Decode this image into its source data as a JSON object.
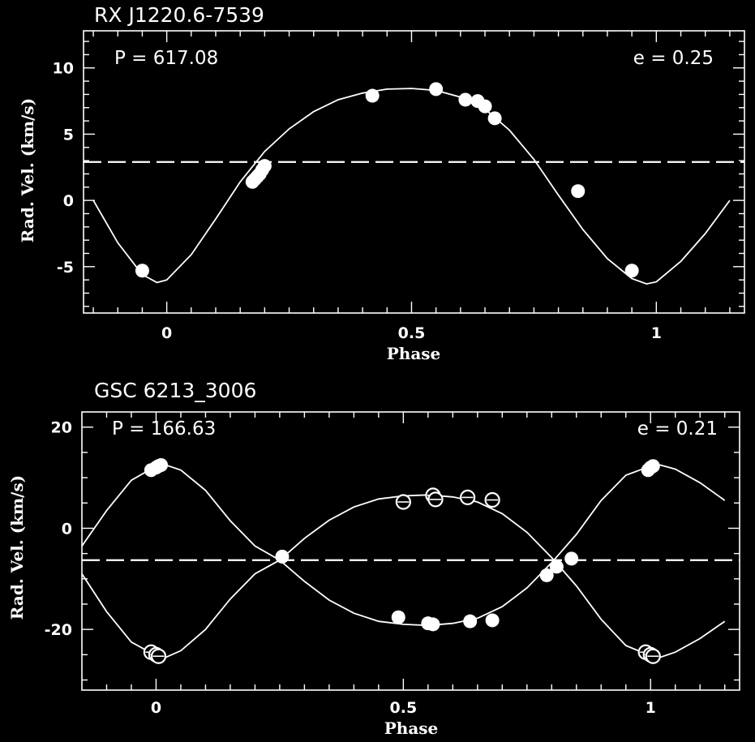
{
  "chart_data": [
    {
      "type": "scatter",
      "title": "RX J1220.6-7539",
      "annotations": {
        "period": "P = 617.08",
        "eccentricity": "e = 0.25"
      },
      "xlabel": "Phase",
      "ylabel": "Rad. Vel. (km/s)",
      "xlim": [
        -0.17,
        1.18
      ],
      "ylim": [
        -8.5,
        12.8
      ],
      "x_ticks": [
        0,
        0.5,
        1
      ],
      "x_tick_labels": [
        "0",
        "0.5",
        "1"
      ],
      "y_ticks": [
        -5,
        0,
        5,
        10
      ],
      "y_tick_labels": [
        "-5",
        "0",
        "5",
        "10"
      ],
      "reference_line": 2.9,
      "series": [
        {
          "marker": "filled",
          "x": [
            -0.05,
            0.175,
            0.18,
            0.185,
            0.19,
            0.195,
            0.2,
            0.42,
            0.55,
            0.61,
            0.635,
            0.65,
            0.67,
            0.84,
            0.95
          ],
          "y": [
            -5.3,
            1.4,
            1.6,
            1.8,
            2.0,
            2.3,
            2.6,
            7.9,
            8.4,
            7.6,
            7.5,
            7.1,
            6.2,
            0.7,
            -5.3
          ]
        }
      ],
      "fit_curve": {
        "x": [
          -0.15,
          -0.1,
          -0.05,
          -0.02,
          0.0,
          0.05,
          0.1,
          0.15,
          0.2,
          0.25,
          0.3,
          0.35,
          0.4,
          0.45,
          0.5,
          0.55,
          0.6,
          0.65,
          0.7,
          0.75,
          0.8,
          0.85,
          0.9,
          0.95,
          0.98,
          1.0,
          1.05,
          1.1,
          1.15
        ],
        "y": [
          0.0,
          -3.2,
          -5.6,
          -6.2,
          -6.0,
          -4.1,
          -1.4,
          1.4,
          3.7,
          5.4,
          6.7,
          7.6,
          8.1,
          8.4,
          8.45,
          8.3,
          7.8,
          6.9,
          5.3,
          3.1,
          0.4,
          -2.2,
          -4.4,
          -5.9,
          -6.3,
          -6.15,
          -4.6,
          -2.5,
          0.0
        ]
      }
    },
    {
      "type": "scatter",
      "title": "GSC 6213_3006",
      "annotations": {
        "period": "P = 166.63",
        "eccentricity": "e = 0.21"
      },
      "xlabel": "Phase",
      "ylabel": "Rad. Vel. (km/s)",
      "xlim": [
        -0.15,
        1.18
      ],
      "ylim": [
        -32,
        23
      ],
      "x_ticks": [
        0,
        0.5,
        1
      ],
      "x_tick_labels": [
        "0",
        "0.5",
        "1"
      ],
      "y_ticks": [
        -20,
        0,
        20
      ],
      "y_tick_labels": [
        "-20",
        "0",
        "20"
      ],
      "reference_line": -6.3,
      "series": [
        {
          "marker": "filled",
          "x": [
            -0.01,
            0.0,
            0.005,
            0.01,
            0.255,
            0.49,
            0.55,
            0.56,
            0.635,
            0.68,
            0.79,
            0.81,
            0.84,
            0.995,
            1.0,
            1.005
          ],
          "y": [
            11.5,
            12.0,
            12.3,
            12.5,
            -5.6,
            -17.6,
            -18.8,
            -19.0,
            -18.4,
            -18.2,
            -9.3,
            -7.6,
            -6.0,
            11.5,
            12.0,
            12.3
          ]
        },
        {
          "marker": "open",
          "x": [
            -0.01,
            0.0,
            0.005,
            0.5,
            0.56,
            0.565,
            0.63,
            0.68,
            0.99,
            1.0,
            1.005
          ],
          "y": [
            -24.5,
            -25.0,
            -25.3,
            5.2,
            6.5,
            5.7,
            6.1,
            5.6,
            -24.5,
            -25.0,
            -25.3
          ]
        }
      ],
      "fit_curves": [
        {
          "x": [
            -0.15,
            -0.1,
            -0.05,
            0.0,
            0.02,
            0.05,
            0.1,
            0.15,
            0.2,
            0.25,
            0.3,
            0.35,
            0.4,
            0.45,
            0.5,
            0.55,
            0.6,
            0.65,
            0.7,
            0.75,
            0.8,
            0.85,
            0.9,
            0.95,
            1.0,
            1.02,
            1.05,
            1.1,
            1.15
          ],
          "y": [
            -3.5,
            3.5,
            9.5,
            12.3,
            12.5,
            11.5,
            7.5,
            1.5,
            -3.5,
            -6.3,
            -10.5,
            -14.2,
            -16.8,
            -18.4,
            -19.0,
            -19.2,
            -18.8,
            -17.8,
            -15.5,
            -11.8,
            -6.8,
            -1.2,
            5.5,
            10.5,
            12.3,
            12.5,
            11.7,
            9.0,
            5.5
          ]
        },
        {
          "x": [
            -0.15,
            -0.1,
            -0.05,
            0.0,
            0.02,
            0.05,
            0.1,
            0.15,
            0.2,
            0.25,
            0.3,
            0.35,
            0.4,
            0.45,
            0.5,
            0.55,
            0.6,
            0.65,
            0.7,
            0.75,
            0.8,
            0.85,
            0.9,
            0.95,
            1.0,
            1.02,
            1.05,
            1.1,
            1.15
          ],
          "y": [
            -9.0,
            -16.5,
            -22.5,
            -25.2,
            -25.5,
            -24.2,
            -20.0,
            -14.0,
            -9.0,
            -6.3,
            -2.0,
            1.6,
            4.2,
            5.8,
            6.4,
            6.6,
            6.2,
            5.2,
            2.9,
            -0.8,
            -5.8,
            -11.4,
            -18.0,
            -23.2,
            -25.2,
            -25.5,
            -24.5,
            -21.8,
            -18.4
          ]
        }
      ]
    }
  ]
}
